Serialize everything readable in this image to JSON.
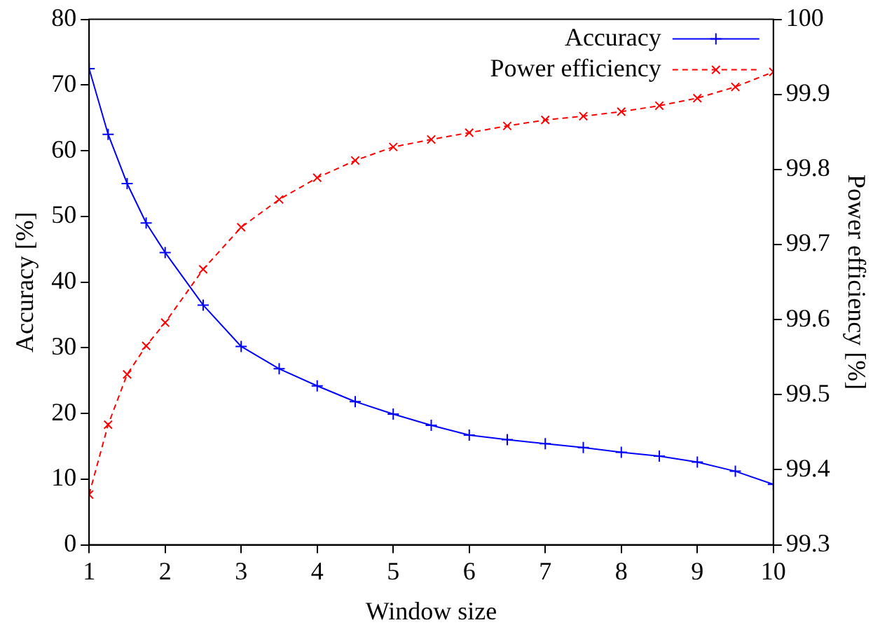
{
  "chart_data": {
    "type": "line",
    "xlabel": "Window size",
    "ylabel": "Accuracy [%]",
    "y2label": "Power efficiency [%]",
    "x": [
      1,
      1.25,
      1.5,
      1.75,
      2,
      2.5,
      3,
      3.5,
      4,
      4.5,
      5,
      5.5,
      6,
      6.5,
      7,
      7.5,
      8,
      8.5,
      9,
      9.5,
      10
    ],
    "series": [
      {
        "name": "Accuracy",
        "color": "#0000ff",
        "values": [
          72.5,
          62.5,
          55,
          49,
          44.5,
          36.5,
          30.2,
          26.8,
          24.2,
          21.8,
          19.9,
          18.2,
          16.7,
          16,
          15.4,
          14.8,
          14.1,
          13.5,
          12.6,
          11.2,
          9.2
        ]
      },
      {
        "name": "Power efficiency",
        "color": "#ff0000",
        "axis": "y2",
        "line_style": "dashed",
        "values": [
          99.367,
          99.46,
          99.527,
          99.565,
          99.596,
          99.667,
          99.723,
          99.76,
          99.789,
          99.812,
          99.83,
          99.84,
          99.849,
          99.858,
          99.866,
          99.871,
          99.877,
          99.885,
          99.895,
          99.91,
          99.93
        ]
      }
    ],
    "xlim": [
      1,
      10
    ],
    "xticks": [
      1,
      2,
      3,
      4,
      5,
      6,
      7,
      8,
      9,
      10
    ],
    "ylim": [
      0,
      80
    ],
    "yticks": [
      0,
      10,
      20,
      30,
      40,
      50,
      60,
      70,
      80
    ],
    "y2lim": [
      99.3,
      100
    ],
    "y2ticks": [
      99.3,
      99.4,
      99.5,
      99.6,
      99.7,
      99.8,
      99.9,
      100
    ],
    "marker": "cross",
    "line_style": "solid",
    "legend": "top right",
    "grid": false
  }
}
